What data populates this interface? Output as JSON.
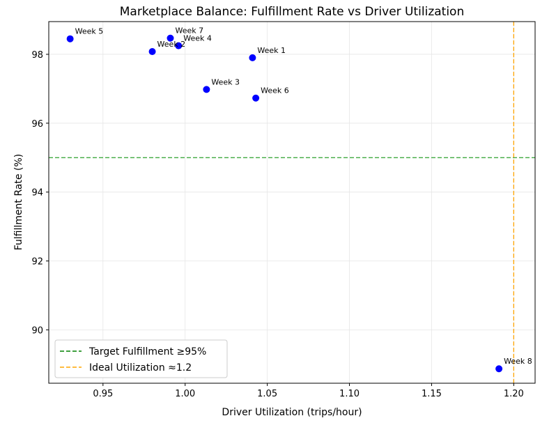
{
  "chart_data": {
    "type": "scatter",
    "title": "Marketplace Balance: Fulfillment Rate vs Driver Utilization",
    "xlabel": "Driver Utilization (trips/hour)",
    "ylabel": "Fulfillment Rate (%)",
    "xlim": [
      0.917,
      1.213
    ],
    "ylim": [
      88.45,
      98.95
    ],
    "xticks": [
      0.95,
      1.0,
      1.05,
      1.1,
      1.15,
      1.2
    ],
    "xtick_labels": [
      "0.95",
      "1.00",
      "1.05",
      "1.10",
      "1.15",
      "1.20"
    ],
    "yticks": [
      90,
      92,
      94,
      96,
      98
    ],
    "ytick_labels": [
      "90",
      "92",
      "94",
      "96",
      "98"
    ],
    "grid": true,
    "point_color": "#0000ff",
    "points": [
      {
        "label": "Week 1",
        "x": 1.041,
        "y": 97.9
      },
      {
        "label": "Week 2",
        "x": 0.98,
        "y": 98.08
      },
      {
        "label": "Week 3",
        "x": 1.013,
        "y": 96.98
      },
      {
        "label": "Week 4",
        "x": 0.996,
        "y": 98.25
      },
      {
        "label": "Week 5",
        "x": 0.93,
        "y": 98.45
      },
      {
        "label": "Week 6",
        "x": 1.043,
        "y": 96.73
      },
      {
        "label": "Week 7",
        "x": 0.991,
        "y": 98.47
      },
      {
        "label": "Week 8",
        "x": 1.191,
        "y": 88.87
      }
    ],
    "reference_lines": [
      {
        "orientation": "horizontal",
        "value": 95,
        "color": "#2ca02c",
        "label": "Target Fulfillment ≥95%",
        "legend_color": "#008000"
      },
      {
        "orientation": "vertical",
        "value": 1.2,
        "color": "#ffa500",
        "label": "Ideal Utilization ≈1.2",
        "legend_color": "#ffa500"
      }
    ],
    "legend_position": "lower-left"
  }
}
